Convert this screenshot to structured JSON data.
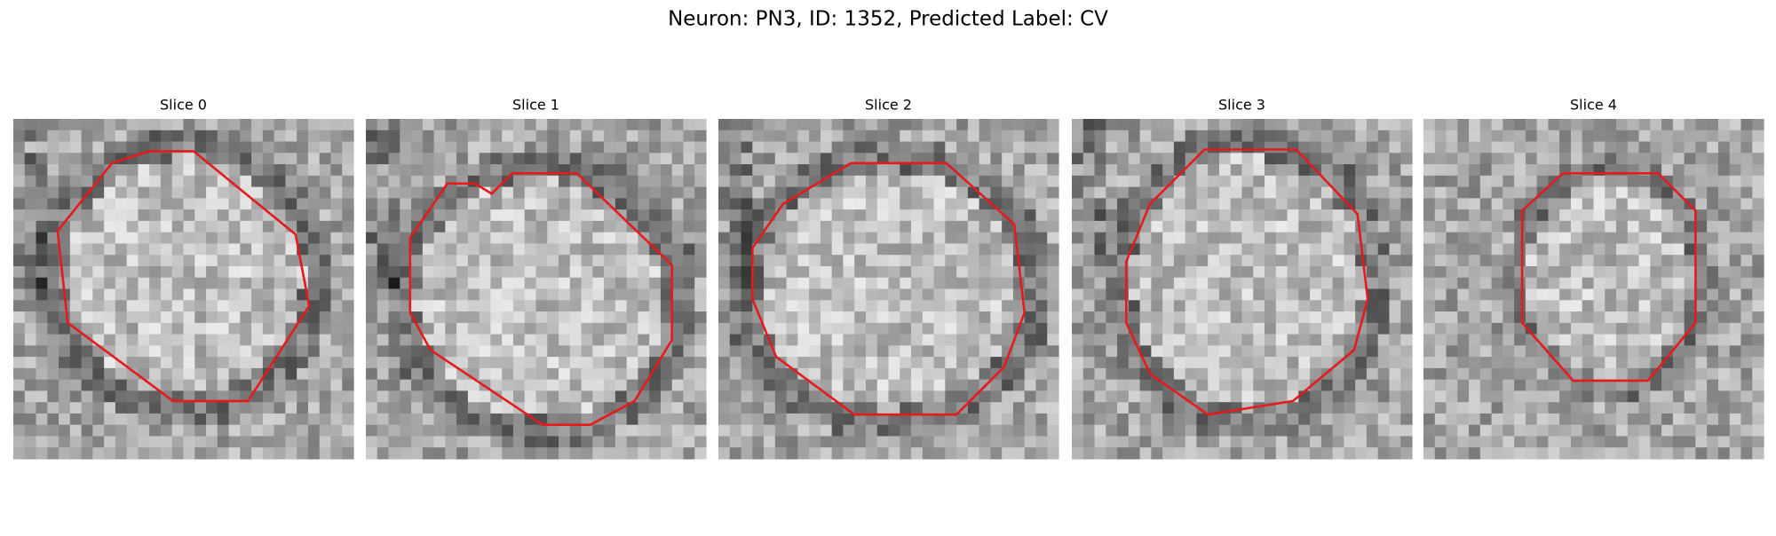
{
  "title": "Neuron: PN3, ID: 1352, Predicted Label: CV",
  "panels": [
    {
      "title": "Slice 0"
    },
    {
      "title": "Slice 1"
    },
    {
      "title": "Slice 2"
    },
    {
      "title": "Slice 3"
    },
    {
      "title": "Slice 4"
    }
  ]
}
